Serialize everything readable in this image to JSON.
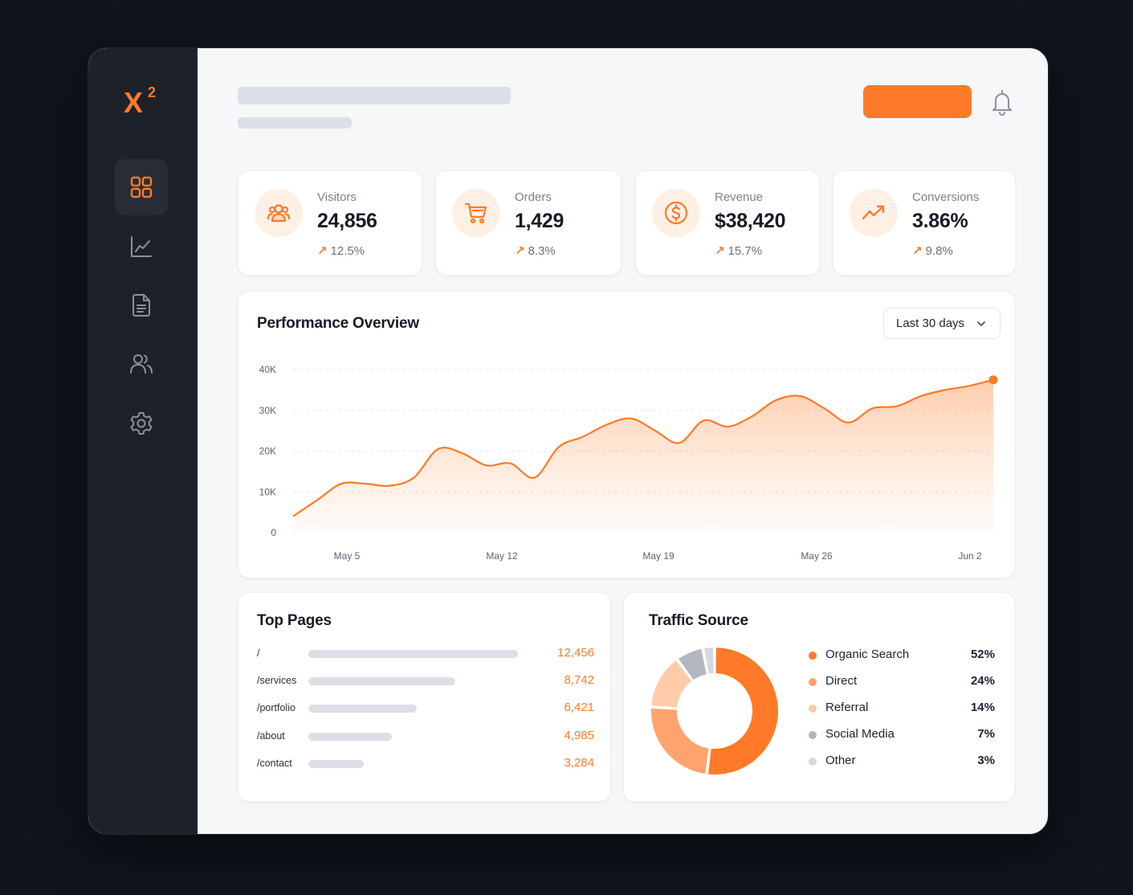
{
  "brand": {
    "logo_text": "X",
    "logo_superscript": "2",
    "accent": "#ff7a28"
  },
  "sidebar": {
    "items": [
      {
        "name": "dashboard",
        "icon": "grid-icon",
        "active": true
      },
      {
        "name": "analytics",
        "icon": "line-chart-icon",
        "active": false
      },
      {
        "name": "reports",
        "icon": "document-icon",
        "active": false
      },
      {
        "name": "users",
        "icon": "users-icon",
        "active": false
      },
      {
        "name": "settings",
        "icon": "gear-icon",
        "active": false
      }
    ]
  },
  "header": {
    "bell_icon": "bell-icon"
  },
  "stats": [
    {
      "icon": "users-icon",
      "label": "Visitors",
      "value": "24,856",
      "delta": "12.5%"
    },
    {
      "icon": "cart-icon",
      "label": "Orders",
      "value": "1,429",
      "delta": "8.3%"
    },
    {
      "icon": "dollar-icon",
      "label": "Revenue",
      "value": "$38,420",
      "delta": "15.7%"
    },
    {
      "icon": "trending-up-icon",
      "label": "Conversions",
      "value": "3.86%",
      "delta": "9.8%"
    }
  ],
  "performance": {
    "title": "Performance Overview",
    "range_label": "Last 30 days"
  },
  "chart_data": {
    "type": "area",
    "title": "Performance Overview",
    "xlabel": "",
    "ylabel": "",
    "x_tick_labels": [
      "May 5",
      "May 12",
      "May 19",
      "May 26",
      "Jun 2"
    ],
    "y_tick_labels": [
      "0",
      "10K",
      "20K",
      "30K",
      "40K"
    ],
    "ylim": [
      0,
      40000
    ],
    "grid": true,
    "x": [
      "May 5",
      "May 6",
      "May 7",
      "May 8",
      "May 9",
      "May 10",
      "May 11",
      "May 12",
      "May 13",
      "May 14",
      "May 15",
      "May 16",
      "May 17",
      "May 18",
      "May 19",
      "May 20",
      "May 21",
      "May 22",
      "May 23",
      "May 24",
      "May 25",
      "May 26",
      "May 27",
      "May 28",
      "May 29",
      "May 30",
      "May 31",
      "Jun 1",
      "Jun 2",
      "Jun 3"
    ],
    "values": [
      4000,
      8000,
      12000,
      12000,
      11500,
      13500,
      20500,
      19500,
      16500,
      17000,
      13500,
      21000,
      23500,
      26500,
      28000,
      25000,
      22000,
      27500,
      26000,
      28500,
      32500,
      33500,
      30500,
      27000,
      30500,
      31000,
      33500,
      35000,
      36000,
      37500
    ]
  },
  "top_pages": {
    "title": "Top Pages",
    "rows": [
      {
        "path": "/",
        "views": "12,456",
        "value": 12456
      },
      {
        "path": "/services",
        "views": "8,742",
        "value": 8742
      },
      {
        "path": "/portfolio",
        "views": "6,421",
        "value": 6421
      },
      {
        "path": "/about",
        "views": "4,985",
        "value": 4985
      },
      {
        "path": "/contact",
        "views": "3,284",
        "value": 3284
      }
    ]
  },
  "traffic_source": {
    "title": "Traffic Source",
    "sources": [
      {
        "name": "Organic Search",
        "pct": "52%",
        "value": 52,
        "color": "#ff7a28"
      },
      {
        "name": "Direct",
        "pct": "24%",
        "value": 24,
        "color": "#ffa36e"
      },
      {
        "name": "Referral",
        "pct": "14%",
        "value": 14,
        "color": "#ffcba8"
      },
      {
        "name": "Social Media",
        "pct": "7%",
        "value": 7,
        "color": "#b2b6bf"
      },
      {
        "name": "Other",
        "pct": "3%",
        "value": 3,
        "color": "#d5d8de"
      }
    ]
  }
}
